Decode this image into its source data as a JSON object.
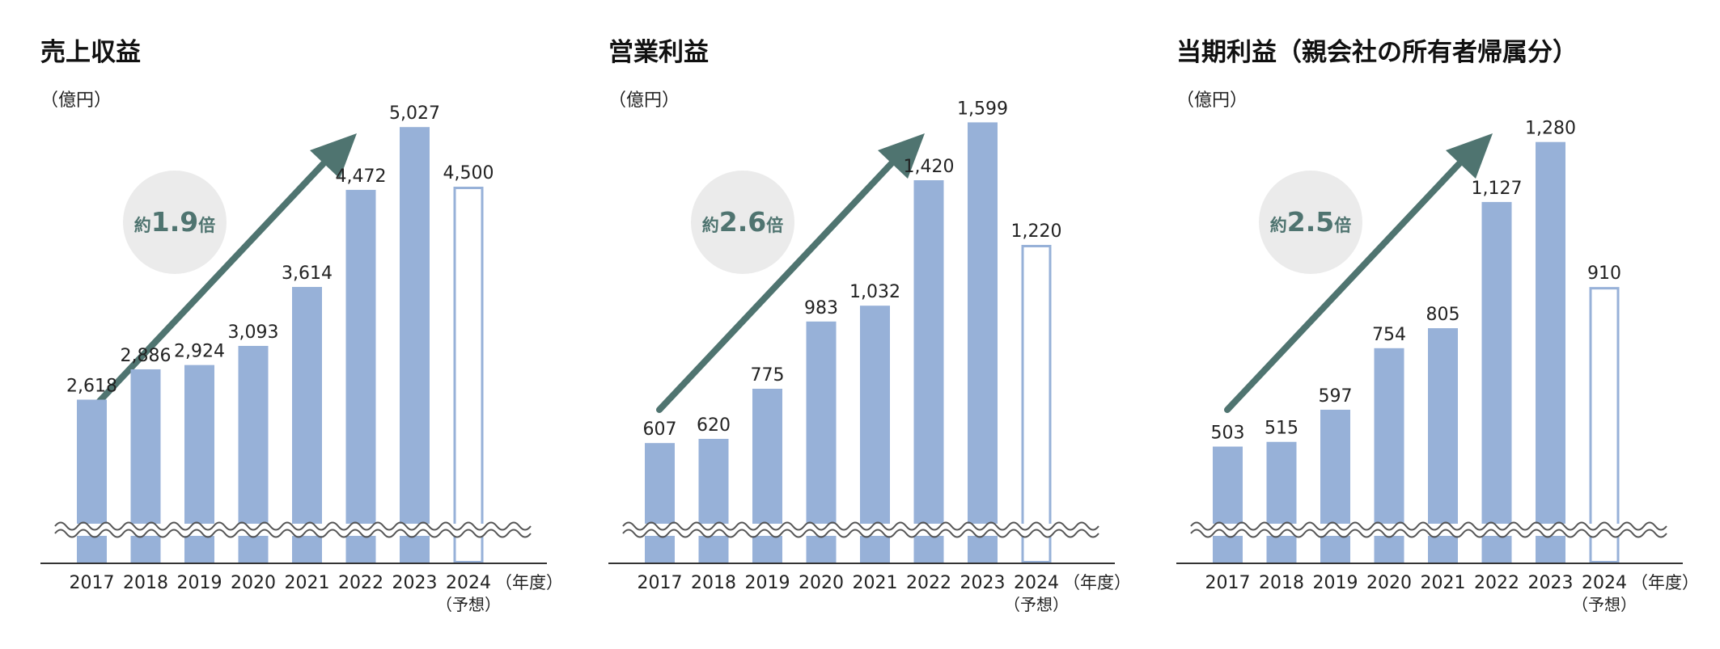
{
  "unit_label": "（億円）",
  "fiscal_year_label": "（年度）",
  "forecast_label": "（予想）",
  "colors": {
    "bar": "#97b1d8",
    "forecast_outline": "#97b1d8",
    "arrow": "#4f7470",
    "badge_bg": "#ebebeb",
    "badge_text": "#4f7470",
    "axis": "#333333"
  },
  "icons": [
    "growth-arrow-icon",
    "axis-break-icon"
  ],
  "chart_data": [
    {
      "type": "bar",
      "title": "売上収益",
      "ylabel": "（億円）",
      "categories": [
        "2017",
        "2018",
        "2019",
        "2020",
        "2021",
        "2022",
        "2023",
        "2024"
      ],
      "values": [
        2618,
        2886,
        2924,
        3093,
        3614,
        4472,
        5027,
        4500
      ],
      "value_labels": [
        "2,618",
        "2,886",
        "2,924",
        "3,093",
        "3,614",
        "4,472",
        "5,027",
        "4,500"
      ],
      "forecast_index": 7,
      "growth_badge": {
        "prefix": "約",
        "value": "1.9",
        "suffix": "倍"
      },
      "axis_break": true,
      "grid": false,
      "legend": "none"
    },
    {
      "type": "bar",
      "title": "営業利益",
      "ylabel": "（億円）",
      "categories": [
        "2017",
        "2018",
        "2019",
        "2020",
        "2021",
        "2022",
        "2023",
        "2024"
      ],
      "values": [
        607,
        620,
        775,
        983,
        1032,
        1420,
        1599,
        1220
      ],
      "value_labels": [
        "607",
        "620",
        "775",
        "983",
        "1,032",
        "1,420",
        "1,599",
        "1,220"
      ],
      "forecast_index": 7,
      "growth_badge": {
        "prefix": "約",
        "value": "2.6",
        "suffix": "倍"
      },
      "axis_break": true,
      "grid": false,
      "legend": "none"
    },
    {
      "type": "bar",
      "title": "当期利益（親会社の所有者帰属分）",
      "ylabel": "（億円）",
      "categories": [
        "2017",
        "2018",
        "2019",
        "2020",
        "2021",
        "2022",
        "2023",
        "2024"
      ],
      "values": [
        503,
        515,
        597,
        754,
        805,
        1127,
        1280,
        910
      ],
      "value_labels": [
        "503",
        "515",
        "597",
        "754",
        "805",
        "1,127",
        "1,280",
        "910"
      ],
      "forecast_index": 7,
      "growth_badge": {
        "prefix": "約",
        "value": "2.5",
        "suffix": "倍"
      },
      "axis_break": true,
      "grid": false,
      "legend": "none"
    }
  ]
}
